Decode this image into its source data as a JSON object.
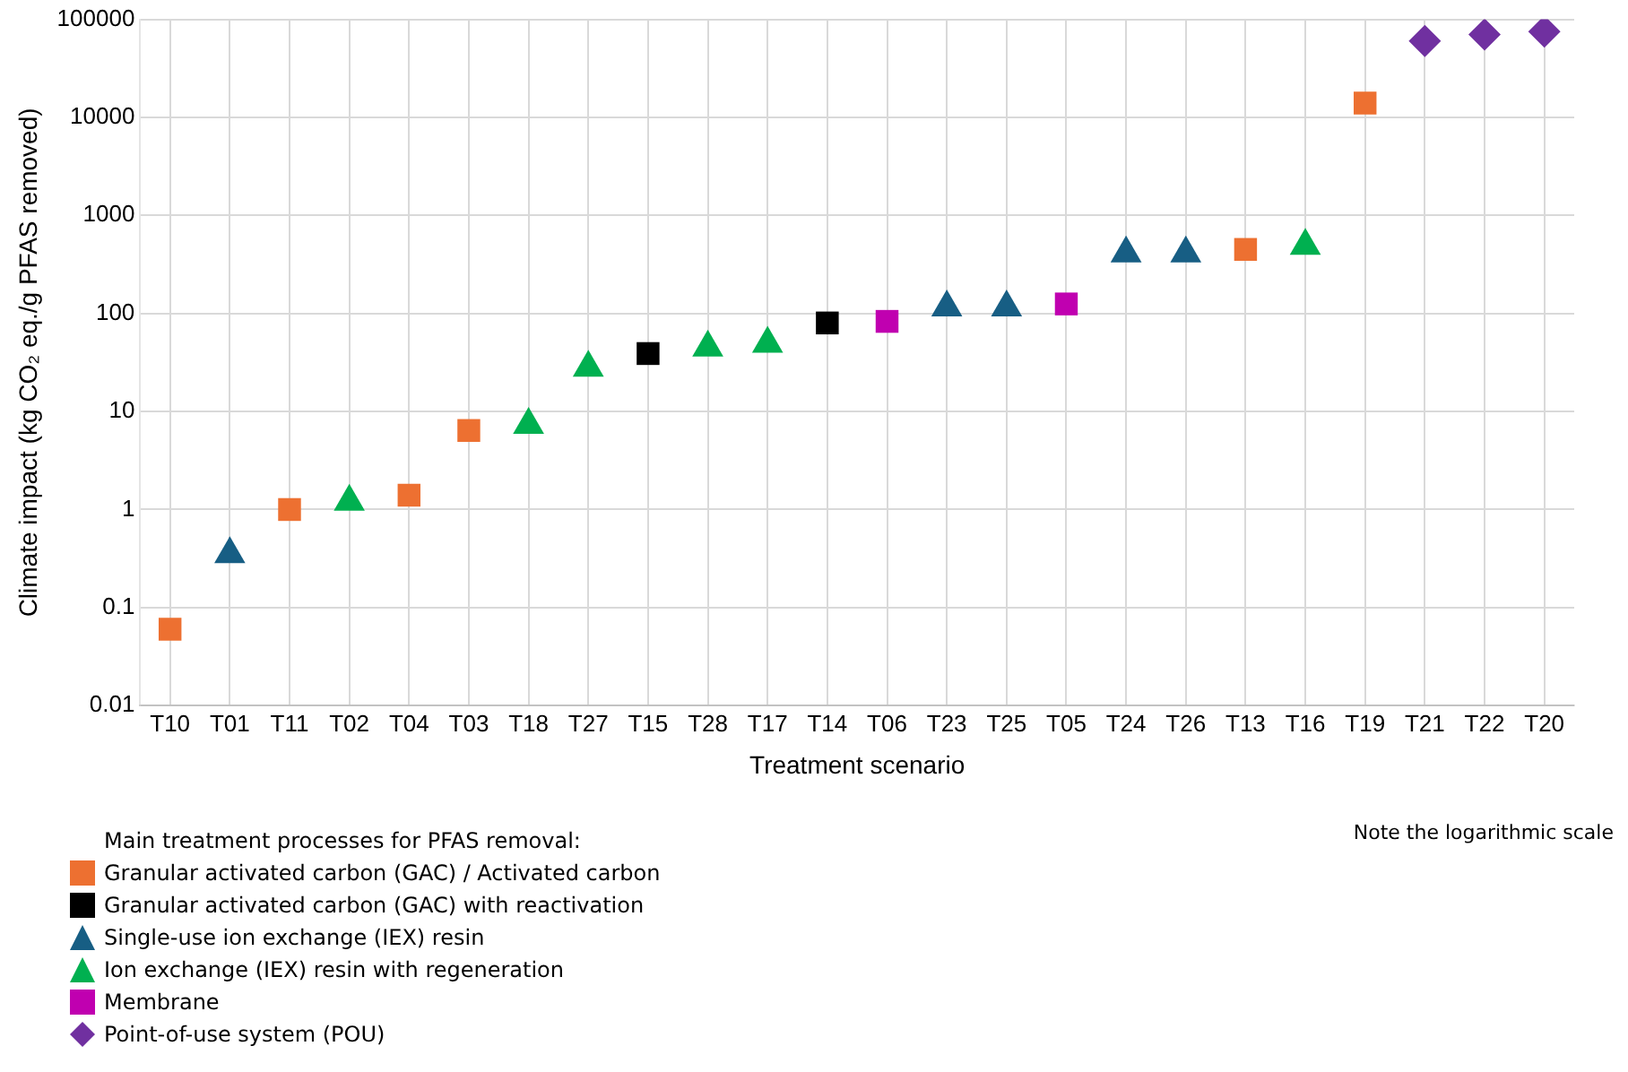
{
  "chart_data": {
    "type": "scatter",
    "xlabel": "Treatment scenario",
    "ylabel": "Climate impact (kg CO₂ eq./g PFAS removed)",
    "legend_title": "Main treatment processes for PFAS removal:",
    "annotations": [
      "Note the logarithmic scale"
    ],
    "categories": [
      "T10",
      "T01",
      "T11",
      "T02",
      "T04",
      "T03",
      "T18",
      "T27",
      "T15",
      "T28",
      "T17",
      "T14",
      "T06",
      "T23",
      "T25",
      "T05",
      "T24",
      "T26",
      "T13",
      "T16",
      "T19",
      "T21",
      "T22",
      "T20"
    ],
    "log": "y",
    "ylim": [
      0.01,
      100000
    ],
    "yticks": [
      0.01,
      0.1,
      1,
      10,
      100,
      1000,
      10000,
      100000
    ],
    "grid": true,
    "legend": "bottom left",
    "series": [
      {
        "name": "Granular activated carbon (GAC) / Activated carbon",
        "color": "#ed7031",
        "marker": "square",
        "x": [
          "T10",
          "T11",
          "T04",
          "T03",
          "T13",
          "T19"
        ],
        "values": [
          0.06,
          1.0,
          1.4,
          6.4,
          450,
          14000
        ]
      },
      {
        "name": "Granular activated carbon (GAC) with reactivation",
        "color": "#000000",
        "marker": "square",
        "x": [
          "T15",
          "T14"
        ],
        "values": [
          39,
          80
        ]
      },
      {
        "name": "Single-use ion exchange (IEX) resin",
        "color": "#175e84",
        "marker": "triangle",
        "x": [
          "T01",
          "T23",
          "T25",
          "T24",
          "T26"
        ],
        "values": [
          0.35,
          115,
          115,
          410,
          410
        ]
      },
      {
        "name": "Ion exchange (IEX) resin with regeneration",
        "color": "#00b050",
        "marker": "triangle",
        "x": [
          "T02",
          "T18",
          "T27",
          "T28",
          "T17",
          "T16"
        ],
        "values": [
          1.2,
          7.3,
          28,
          45,
          49,
          490
        ]
      },
      {
        "name": "Membrane",
        "color": "#c000b0",
        "marker": "square",
        "x": [
          "T06",
          "T05"
        ],
        "values": [
          83,
          125
        ]
      },
      {
        "name": "Point-of-use system (POU)",
        "color": "#7030a0",
        "marker": "diamond",
        "x": [
          "T21",
          "T22",
          "T20"
        ],
        "values": [
          60000,
          70000,
          75000
        ]
      }
    ]
  }
}
